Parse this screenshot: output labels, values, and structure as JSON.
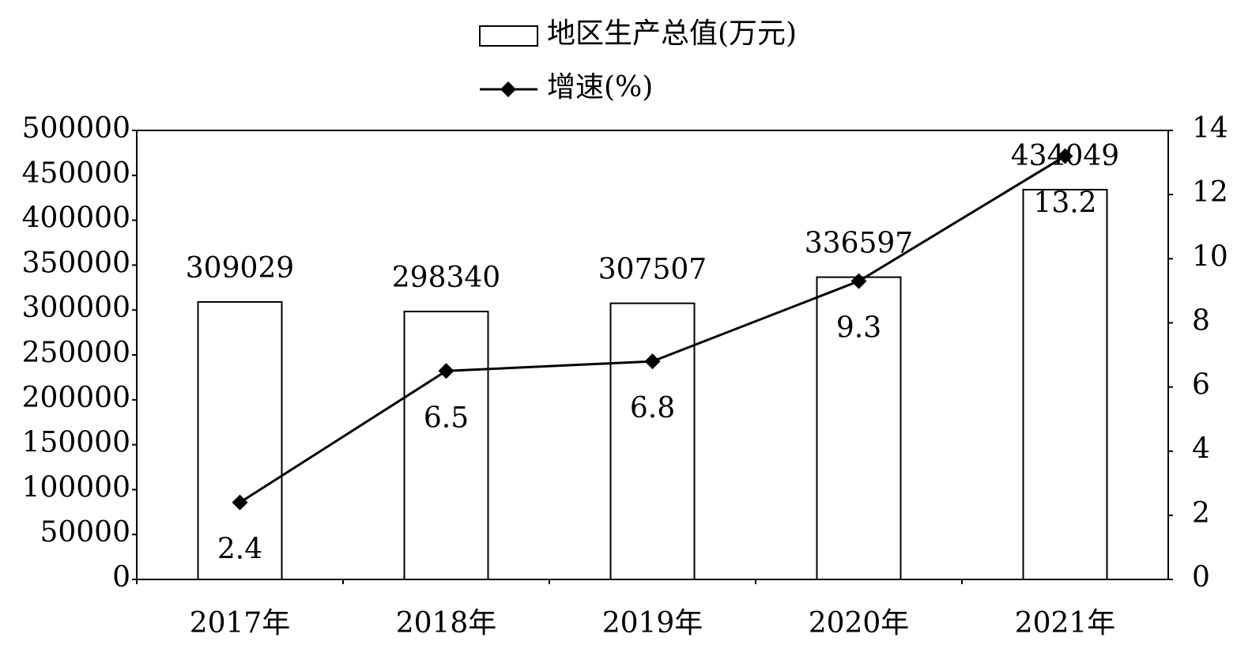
{
  "chart_data": {
    "type": "bar",
    "categories": [
      "2017年",
      "2018年",
      "2019年",
      "2020年",
      "2021年"
    ],
    "series": [
      {
        "name": "地区生产总值(万元)",
        "type": "bar",
        "color": "#ffffff",
        "values": [
          309029,
          298340,
          307507,
          336597,
          434049
        ]
      },
      {
        "name": "增速(%)",
        "type": "line",
        "axis": "y2",
        "color": "#000000",
        "values": [
          2.4,
          6.5,
          6.8,
          9.3,
          13.2
        ]
      }
    ],
    "ylim": [
      0,
      500000
    ],
    "yticks": [
      0,
      50000,
      100000,
      150000,
      200000,
      250000,
      300000,
      350000,
      400000,
      450000,
      500000
    ],
    "y2lim": [
      0,
      14
    ],
    "y2ticks": [
      0,
      2,
      4,
      6,
      8,
      10,
      12,
      14
    ],
    "grid": false
  }
}
